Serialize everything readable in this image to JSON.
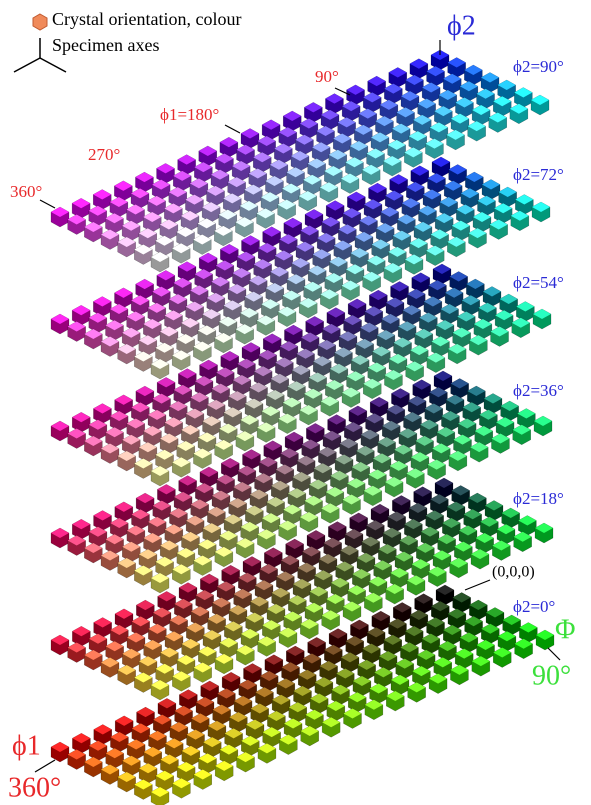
{
  "legend": {
    "orientation": "Crystal orientation, colour",
    "axes": "Specimen axes"
  },
  "axis_labels": {
    "phi2": "ϕ2",
    "phi1_90": "90°",
    "phi1_180": "ϕ1=180°",
    "phi1_270": "270°",
    "phi1_360_top": "360°",
    "Phi": "Φ",
    "Phi_90": "90°",
    "phi1": "ϕ1",
    "phi1_360": "360°",
    "origin": "(0,0,0)"
  },
  "layers": [
    "ϕ2=0°",
    "ϕ2=18°",
    "ϕ2=36°",
    "ϕ2=54°",
    "ϕ2=72°",
    "ϕ2=90°"
  ]
}
